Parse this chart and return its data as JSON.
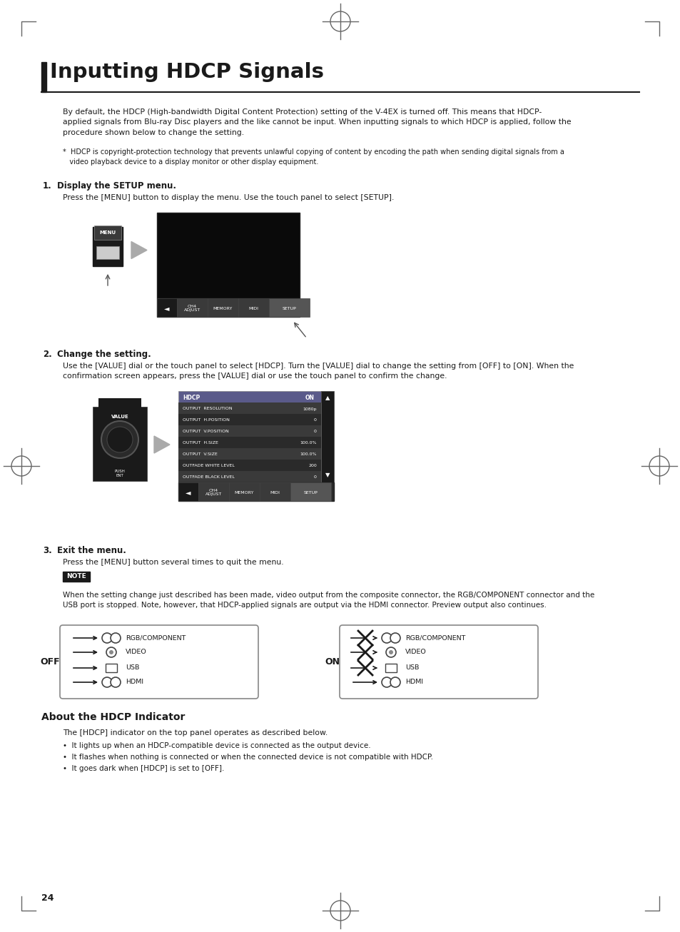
{
  "title": "Inputting HDCP Signals",
  "page_num": "24",
  "bg_color": "#ffffff",
  "title_bar_color": "#1a1a1a",
  "intro_text": "By default, the HDCP (High-bandwidth Digital Content Protection) setting of the V-4EX is turned off. This means that HDCP-\napplied signals from Blu-ray Disc players and the like cannot be input. When inputting signals to which HDCP is applied, follow the\nprocedure shown below to change the setting.",
  "footnote_text": "*  HDCP is copyright-protection technology that prevents unlawful copying of content by encoding the path when sending digital signals from a\n   video playback device to a display monitor or other display equipment.",
  "step1_title": "Display the SETUP menu.",
  "step1_text": "Press the [MENU] button to display the menu. Use the touch panel to select [SETUP].",
  "step2_title": "Change the setting.",
  "step2_text": "Use the [VALUE] dial or the touch panel to select [HDCP]. Turn the [VALUE] dial to change the setting from [OFF] to [ON]. When the\nconfirmation screen appears, press the [VALUE] dial or use the touch panel to confirm the change.",
  "step3_title": "Exit the menu.",
  "step3_text": "Press the [MENU] button several times to quit the menu.",
  "note_text": "When the setting change just described has been made, video output from the composite connector, the RGB/COMPONENT connector and the\nUSB port is stopped. Note, however, that HDCP-applied signals are output via the HDMI connector. Preview output also continues.",
  "about_title": "About the HDCP Indicator",
  "about_text": "The [HDCP] indicator on the top panel operates as described below.",
  "bullet1": "•  It lights up when an HDCP-compatible device is connected as the output device.",
  "bullet2": "•  It flashes when nothing is connected or when the connected device is not compatible with HDCP.",
  "bullet3": "•  It goes dark when [HDCP] is set to [OFF].",
  "off_label": "OFF",
  "on_label": "ON",
  "connector_labels": [
    "RGB/COMPONENT",
    "VIDEO",
    "USB",
    "HDMI"
  ],
  "menu_rows": [
    [
      "OUTPUT  RESOLUTION",
      "1080p"
    ],
    [
      "OUTPUT  H.POSITION",
      "0"
    ],
    [
      "OUTPUT  V.POSITION",
      "0"
    ],
    [
      "OUTPUT  H.SIZE",
      "100.0%"
    ],
    [
      "OUTPUT  V.SIZE",
      "100.0%"
    ],
    [
      "OUTFADE WHITE LEVEL",
      "200"
    ],
    [
      "OUTFADE BLACK LEVEL",
      "0"
    ]
  ],
  "tab_labels": [
    "CH4\nADJUST",
    "MEMORY",
    "MIDI",
    "SETUP"
  ]
}
